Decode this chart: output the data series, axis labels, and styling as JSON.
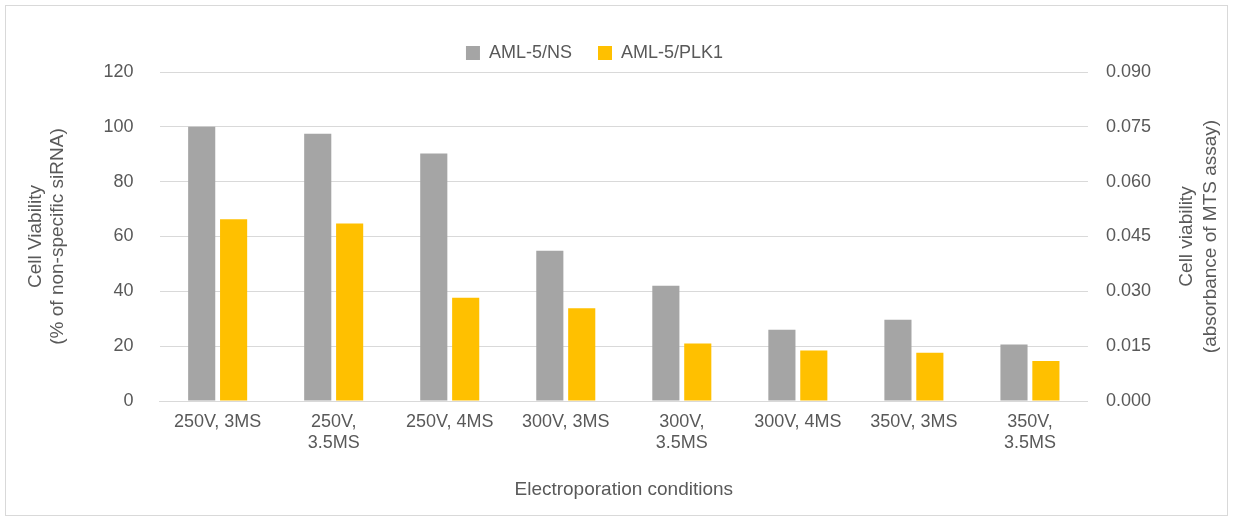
{
  "chart_data": {
    "type": "bar",
    "xlabel": "Electroporation conditions",
    "ylabel": "Cell Viability (% of non-specific siRNA)",
    "y2label": "Cell viability (absorbance of MTS assay)",
    "categories": [
      "250V, 3MS",
      "250V, 3.5MS",
      "250V, 4MS",
      "300V, 3MS",
      "300V, 3.5MS",
      "300V, 4MS",
      "350V, 3MS",
      "350V, 3.5MS"
    ],
    "series": [
      {
        "name": "AML-5/NS",
        "color": "#a5a5a5",
        "values": [
          100,
          97.5,
          90.3,
          54.8,
          42,
          26,
          29.6,
          20.6
        ]
      },
      {
        "name": "AML-5/PLK1",
        "color": "#ffc000",
        "values": [
          66.3,
          64.7,
          37.7,
          33.8,
          21,
          18.4,
          17.6,
          14.6
        ]
      }
    ],
    "ylim": [
      0,
      120
    ],
    "yticks": [
      0,
      20,
      40,
      60,
      80,
      100,
      120
    ],
    "y2lim": [
      0,
      0.09
    ],
    "y2ticks": [
      {
        "value": 0,
        "label": "0.000"
      },
      {
        "value": 0.015,
        "label": "0.015"
      },
      {
        "value": 0.03,
        "label": "0.030"
      },
      {
        "value": 0.045,
        "label": "0.045"
      },
      {
        "value": 0.06,
        "label": "0.060"
      },
      {
        "value": 0.075,
        "label": "0.075"
      },
      {
        "value": 0.09,
        "label": "0.090"
      }
    ],
    "grid": "y",
    "legend": "top"
  }
}
